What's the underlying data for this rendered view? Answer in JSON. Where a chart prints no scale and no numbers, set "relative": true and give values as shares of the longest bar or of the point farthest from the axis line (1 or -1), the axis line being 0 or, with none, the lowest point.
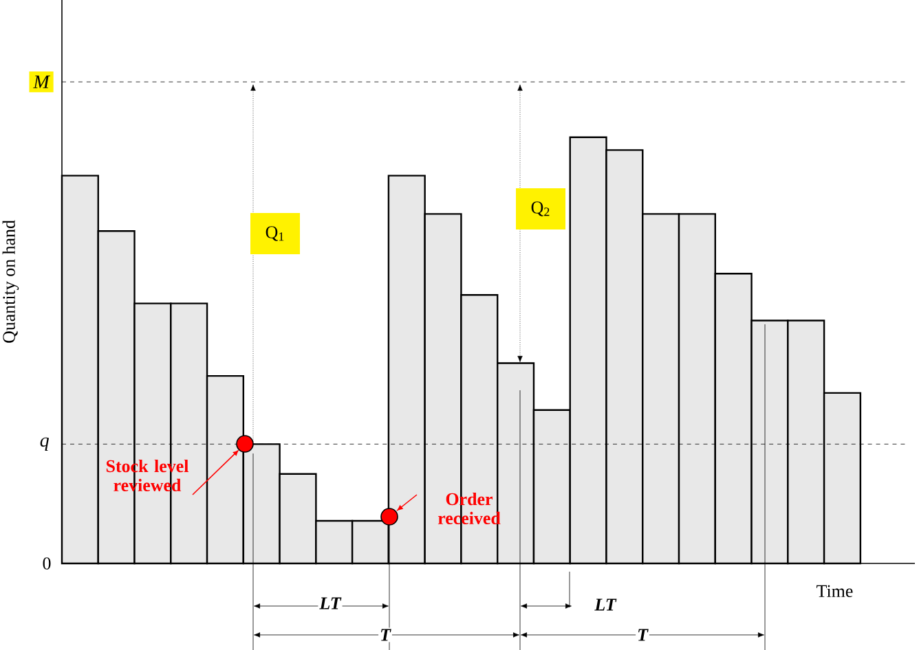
{
  "chart_data": {
    "type": "bar",
    "relative": true,
    "xlabel": "Time",
    "ylabel": "Quantity on hand",
    "color": "#e8e8e8",
    "categories": [
      null,
      null,
      null,
      null,
      null,
      null,
      null,
      null,
      null,
      null,
      null,
      null,
      null,
      null,
      null,
      null,
      null,
      null,
      null,
      null,
      null,
      null
    ],
    "values": [
      0.91,
      0.78,
      0.61,
      0.61,
      0.44,
      0.28,
      0.21,
      0.1,
      0.1,
      0.91,
      0.82,
      0.63,
      0.47,
      0.36,
      1.0,
      0.97,
      0.82,
      0.82,
      0.68,
      0.57,
      0.57,
      0.4
    ],
    "ref_lines": [
      {
        "axis": "y",
        "value": 1.13,
        "label": "M",
        "color": "#000000",
        "line_style": "dashed"
      },
      {
        "axis": "y",
        "value": 0.28,
        "label": "q",
        "color": "#000000",
        "line_style": "dashed"
      }
    ],
    "annotations": [
      "0",
      "Q$_{1}$",
      "Q$_{2}$",
      "Stock level reviewed",
      "Order received",
      "LT",
      "T",
      "LT",
      "T"
    ]
  }
}
